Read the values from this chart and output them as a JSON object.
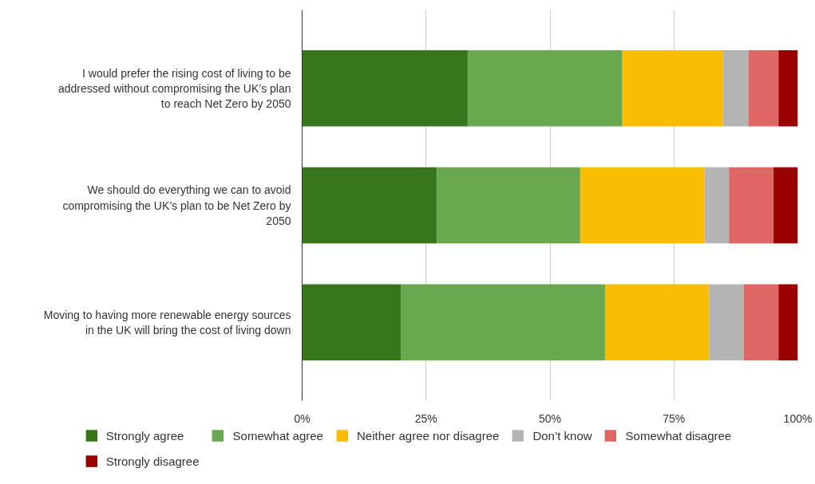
{
  "chart_data": {
    "type": "bar",
    "orientation": "horizontal",
    "stacked": true,
    "categories": [
      "I would prefer the rising cost of living to be addressed without compromising the UK’s plan to reach Net Zero by 2050",
      "We should do everything we can to avoid compromising the UK’s plan to be Net Zero by 2050",
      "Moving to having more renewable energy sources in the UK will bring the cost of living down"
    ],
    "series": [
      {
        "name": "Strongly agree",
        "color": "#38761d",
        "values": [
          33.4,
          27.2,
          19.9
        ]
      },
      {
        "name": "Somewhat agree",
        "color": "#6aa84f",
        "values": [
          31.2,
          28.9,
          41.2
        ]
      },
      {
        "name": "Neither agree nor disagree",
        "color": "#f9bd04",
        "values": [
          20.3,
          25.1,
          21.0
        ]
      },
      {
        "name": "Don’t know",
        "color": "#b4b4b4",
        "values": [
          5.1,
          4.9,
          7.0
        ]
      },
      {
        "name": "Somewhat disagree",
        "color": "#e06666",
        "values": [
          6.1,
          9.0,
          7.0
        ]
      },
      {
        "name": "Strongly disagree",
        "color": "#990000",
        "values": [
          3.9,
          4.9,
          3.9
        ]
      }
    ],
    "xlim": [
      0,
      100
    ],
    "xticks": [
      {
        "value": 0,
        "label": "0%"
      },
      {
        "value": 25,
        "label": "25%"
      },
      {
        "value": 50,
        "label": "50%"
      },
      {
        "value": 75,
        "label": "75%"
      },
      {
        "value": 100,
        "label": "100%"
      }
    ],
    "grid": "x",
    "legend": "bottom"
  }
}
